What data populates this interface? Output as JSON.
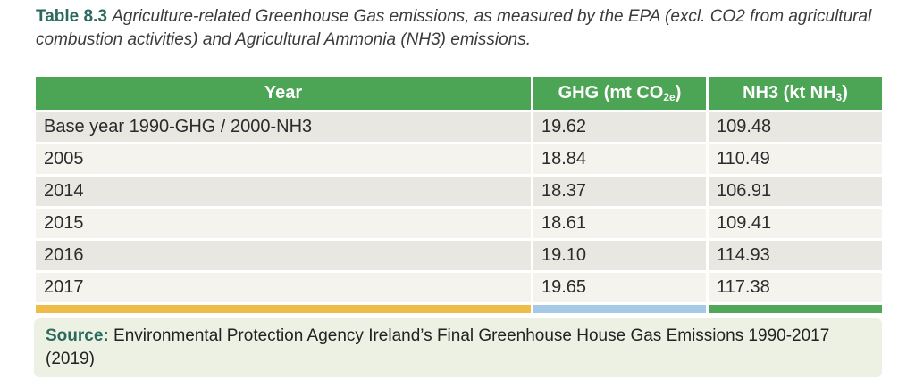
{
  "caption": {
    "label": "Table 8.3",
    "text": "Agriculture-related Greenhouse Gas emissions, as measured by the EPA (excl. CO2 from agricultural combustion activities) and Agricultural Ammonia (NH3) emissions."
  },
  "table": {
    "columns": [
      {
        "pre": "Year",
        "sub": "",
        "post": ""
      },
      {
        "pre": "GHG (mt CO",
        "sub": "2e",
        "post": ")"
      },
      {
        "pre": "NH3 (kt NH",
        "sub": "3",
        "post": ")"
      }
    ],
    "rows": [
      {
        "year": "Base year 1990-GHG / 2000-NH3",
        "ghg": "19.62",
        "nh3": "109.48"
      },
      {
        "year": "2005",
        "ghg": "18.84",
        "nh3": "110.49"
      },
      {
        "year": "2014",
        "ghg": "18.37",
        "nh3": "106.91"
      },
      {
        "year": "2015",
        "ghg": "18.61",
        "nh3": "109.41"
      },
      {
        "year": "2016",
        "ghg": "19.10",
        "nh3": "114.93"
      },
      {
        "year": "2017",
        "ghg": "19.65",
        "nh3": "117.38"
      }
    ]
  },
  "footer_bar": {
    "colors": [
      "#f0bc48",
      "#a6c9e7",
      "#4fa757"
    ],
    "styles": [
      "background:#f0bc48",
      "background:#a6c9e7",
      "background:#4fa757"
    ]
  },
  "source": {
    "label": "Source:",
    "text": "Environmental Protection Agency Ireland’s Final Greenhouse House Gas Emissions 1990-2017 (2019)"
  },
  "colors": {
    "header_green": "#4ca455",
    "caption_teal": "#2a6a5e",
    "row_dark": "#e9e7e1",
    "row_light": "#f4f3ee",
    "source_bg": "#edf1e3"
  },
  "chart_data": {
    "type": "table",
    "title": "Table 8.3 Agriculture-related Greenhouse Gas emissions, as measured by the EPA (excl. CO2 from agricultural combustion activities) and Agricultural Ammonia (NH3) emissions.",
    "columns": [
      "Year",
      "GHG (mt CO2e)",
      "NH3 (kt NH3)"
    ],
    "rows": [
      [
        "Base year 1990-GHG / 2000-NH3",
        19.62,
        109.48
      ],
      [
        "2005",
        18.84,
        110.49
      ],
      [
        "2014",
        18.37,
        106.91
      ],
      [
        "2015",
        18.61,
        109.41
      ],
      [
        "2016",
        19.1,
        114.93
      ],
      [
        "2017",
        19.65,
        117.38
      ]
    ],
    "source": "Environmental Protection Agency Ireland’s Final Greenhouse House Gas Emissions 1990-2017 (2019)"
  }
}
